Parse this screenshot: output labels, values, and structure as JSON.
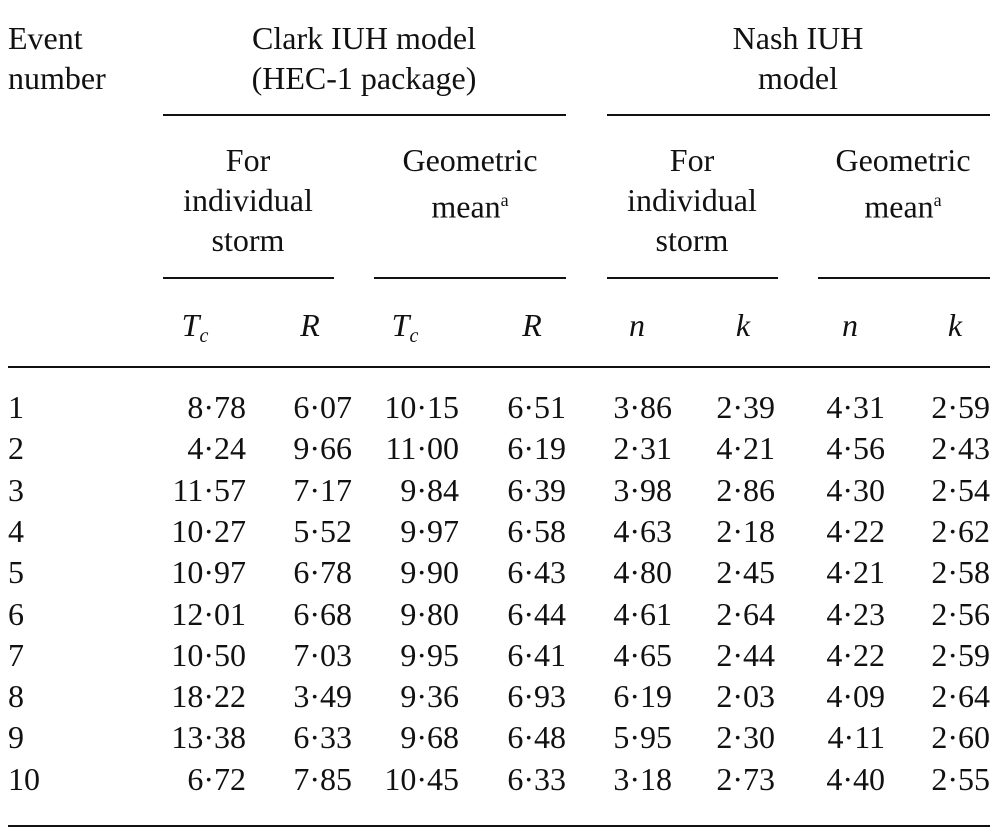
{
  "header": {
    "event": [
      "Event",
      "number"
    ],
    "clark": [
      "Clark IUH model",
      "(HEC-1 package)"
    ],
    "nash": [
      "Nash IUH",
      "model"
    ],
    "individual": [
      "For",
      "individual",
      "storm"
    ],
    "geometric": [
      "Geometric",
      "mean"
    ],
    "footnote_mark": "a",
    "symbols": [
      {
        "main": "T",
        "sub": "c"
      },
      {
        "main": "R",
        "sub": ""
      },
      {
        "main": "T",
        "sub": "c"
      },
      {
        "main": "R",
        "sub": ""
      },
      {
        "main": "n",
        "sub": ""
      },
      {
        "main": "k",
        "sub": ""
      },
      {
        "main": "n",
        "sub": ""
      },
      {
        "main": "k",
        "sub": ""
      }
    ]
  },
  "rows": [
    [
      "1",
      "8·78",
      "6·07",
      "10·15",
      "6·51",
      "3·86",
      "2·39",
      "4·31",
      "2·59"
    ],
    [
      "2",
      "4·24",
      "9·66",
      "11·00",
      "6·19",
      "2·31",
      "4·21",
      "4·56",
      "2·43"
    ],
    [
      "3",
      "11·57",
      "7·17",
      "9·84",
      "6·39",
      "3·98",
      "2·86",
      "4·30",
      "2·54"
    ],
    [
      "4",
      "10·27",
      "5·52",
      "9·97",
      "6·58",
      "4·63",
      "2·18",
      "4·22",
      "2·62"
    ],
    [
      "5",
      "10·97",
      "6·78",
      "9·90",
      "6·43",
      "4·80",
      "2·45",
      "4·21",
      "2·58"
    ],
    [
      "6",
      "12·01",
      "6·68",
      "9·80",
      "6·44",
      "4·61",
      "2·64",
      "4·23",
      "2·56"
    ],
    [
      "7",
      "10·50",
      "7·03",
      "9·95",
      "6·41",
      "4·65",
      "2·44",
      "4·22",
      "2·59"
    ],
    [
      "8",
      "18·22",
      "3·49",
      "9·36",
      "6·93",
      "6·19",
      "2·03",
      "4·09",
      "2·64"
    ],
    [
      "9",
      "13·38",
      "6·33",
      "9·68",
      "6·48",
      "5·95",
      "2·30",
      "4·11",
      "2·60"
    ],
    [
      "10",
      "6·72",
      "7·85",
      "10·45",
      "6·33",
      "3·18",
      "2·73",
      "4·40",
      "2·55"
    ]
  ]
}
